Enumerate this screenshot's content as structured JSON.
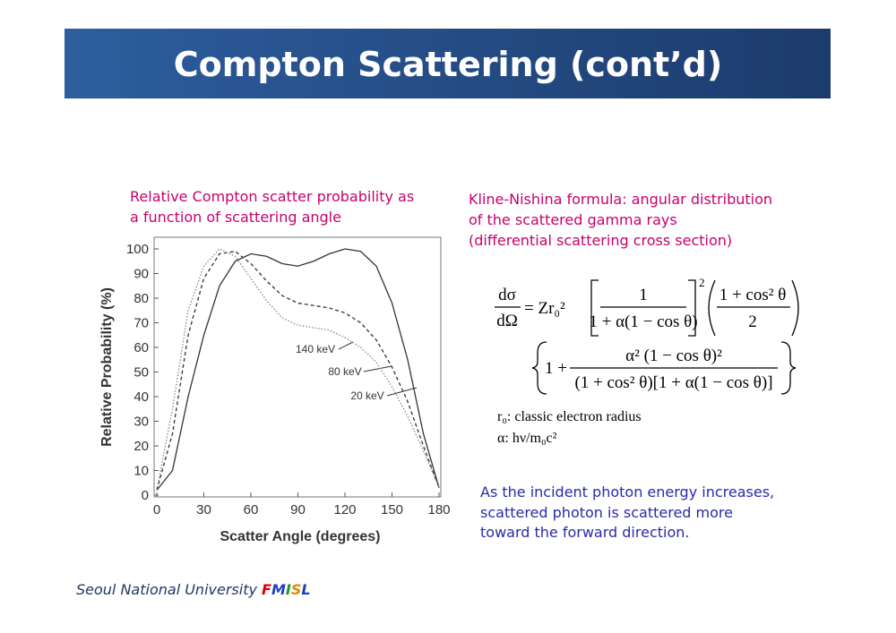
{
  "header": {
    "title": "Compton Scattering (cont’d)"
  },
  "chart_caption": [
    "Relative Compton scatter probability as",
    "a function of scattering angle"
  ],
  "formula_caption": [
    "Kline-Nishina formula: angular distribution",
    "of the scattered gamma rays",
    "(differential scattering cross section)"
  ],
  "formula": {
    "lhs_num": "dσ",
    "lhs_den": "dΩ",
    "eq": "= Zr₀²",
    "f1_num": "1",
    "f1_den": "1 + α(1 − cos θ)",
    "power": "2",
    "f2_num": "1 + cos² θ",
    "f2_den": "2",
    "line2_lead": "1 +",
    "f3_num": "α² (1 − cos θ)²",
    "f3_den": "(1 + cos² θ)[1 + α(1 − cos θ)]"
  },
  "notes": [
    "r₀: classic electron radius",
    "α: hν/m₀c²"
  ],
  "conclusion": [
    "As the incident photon energy increases,",
    "scattered photon is scattered more",
    "toward the forward direction."
  ],
  "footer": {
    "text": "Seoul National University",
    "letters": [
      "F",
      "M",
      "I",
      "S",
      "L"
    ]
  },
  "chart_data": {
    "type": "line",
    "x": [
      0,
      10,
      20,
      30,
      40,
      50,
      60,
      70,
      80,
      90,
      100,
      110,
      120,
      130,
      140,
      150,
      160,
      170,
      180
    ],
    "xlim": [
      0,
      180
    ],
    "xticks": [
      0,
      30,
      60,
      90,
      120,
      150,
      180
    ],
    "ylim": [
      0,
      100
    ],
    "yticks": [
      0,
      10,
      20,
      30,
      40,
      50,
      60,
      70,
      80,
      90,
      100
    ],
    "xlabel": "Scatter Angle (degrees)",
    "ylabel": "Relative Probability (%)",
    "series": [
      {
        "name": "20 keV",
        "color": "#333333",
        "style": "solid",
        "values": [
          2,
          10,
          40,
          65,
          85,
          95,
          98,
          97,
          94,
          93,
          95,
          98,
          100,
          99,
          93,
          78,
          55,
          25,
          3
        ]
      },
      {
        "name": "80 keV",
        "color": "#333333",
        "style": "dashed",
        "values": [
          2,
          25,
          65,
          88,
          98,
          99,
          94,
          87,
          81,
          78,
          77,
          76,
          74,
          70,
          63,
          52,
          38,
          20,
          3
        ]
      },
      {
        "name": "140 keV",
        "color": "#888888",
        "style": "dotted",
        "values": [
          2,
          35,
          75,
          93,
          100,
          97,
          88,
          79,
          72,
          69,
          68,
          67,
          64,
          60,
          54,
          44,
          32,
          18,
          3
        ]
      }
    ]
  }
}
